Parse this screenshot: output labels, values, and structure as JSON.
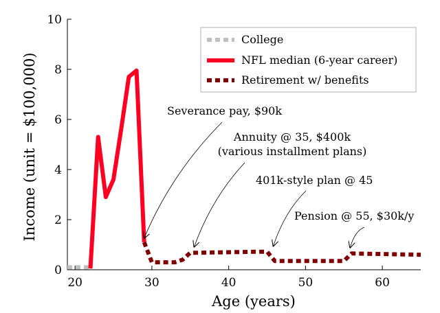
{
  "chart_data": {
    "type": "line",
    "title": "",
    "xlabel": "Age (years)",
    "ylabel": "Income (unit = $100,000)",
    "xlim": [
      19,
      65
    ],
    "ylim": [
      0,
      10
    ],
    "xticks": [
      20,
      30,
      40,
      50,
      60
    ],
    "yticks": [
      0,
      2,
      4,
      6,
      8,
      10
    ],
    "grid": false,
    "legend_position": "top-right",
    "series": [
      {
        "name": "College",
        "color": "#c0c0c0",
        "style": "dotted",
        "x": [
          19,
          22
        ],
        "y": [
          0.1,
          0.1
        ]
      },
      {
        "name": "NFL median (6-year career)",
        "color": "#ff0020",
        "style": "solid",
        "x": [
          22,
          23,
          24,
          25,
          26,
          27,
          28,
          29
        ],
        "y": [
          0.05,
          5.3,
          2.9,
          3.6,
          5.6,
          7.7,
          7.95,
          1.1
        ]
      },
      {
        "name": "Retirement w/ benefits",
        "color": "#800000",
        "style": "dotted",
        "x": [
          29,
          30,
          33,
          34,
          35,
          36,
          44,
          45,
          46,
          54,
          55,
          56,
          65
        ],
        "y": [
          1.1,
          0.3,
          0.3,
          0.4,
          0.68,
          0.68,
          0.72,
          0.72,
          0.35,
          0.35,
          0.35,
          0.65,
          0.6
        ]
      }
    ],
    "annotations": [
      {
        "text": "Severance pay, $90k",
        "x": 29,
        "y": 1.1
      },
      {
        "text": "Annuity @ 35, $400k",
        "text2": "(various installment plans)",
        "x": 35.5,
        "y": 0.75
      },
      {
        "text": "401k-style plan @ 45",
        "x": 45.8,
        "y": 0.78
      },
      {
        "text": "Pension @ 55, $30k/y",
        "x": 55.8,
        "y": 0.72
      }
    ]
  }
}
